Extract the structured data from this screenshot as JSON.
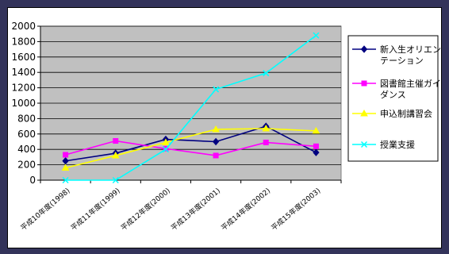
{
  "chart_data": {
    "type": "line",
    "categories": [
      "平成10年度(1998)",
      "平成11年度(1999)",
      "平成12年度(2000)",
      "平成13年度(2001)",
      "平成14年度(2002)",
      "平成15年度(2003)"
    ],
    "ylim": [
      0,
      2000
    ],
    "yticks": [
      0,
      200,
      400,
      600,
      800,
      1000,
      1200,
      1400,
      1600,
      1800,
      2000
    ],
    "grid": true,
    "plot_background": "#c0c0c0",
    "legend_position": "right",
    "series": [
      {
        "name_lines": [
          "新入生オリエン",
          "テーション"
        ],
        "name": "新入生オリエンテーション",
        "color": "#000080",
        "marker": "diamond",
        "values": [
          250,
          350,
          530,
          500,
          700,
          360
        ]
      },
      {
        "name_lines": [
          "図書館主催ガイ",
          "ダンス"
        ],
        "name": "図書館主催ガイダンス",
        "color": "#ff00ff",
        "marker": "square",
        "values": [
          330,
          510,
          410,
          320,
          490,
          440
        ]
      },
      {
        "name_lines": [
          "申込制講習会"
        ],
        "name": "申込制講習会",
        "color": "#ffff00",
        "marker": "triangle",
        "values": [
          160,
          320,
          490,
          660,
          670,
          640
        ]
      },
      {
        "name_lines": [
          "授業支援"
        ],
        "name": "授業支援",
        "color": "#00ffff",
        "marker": "x",
        "values": [
          0,
          0,
          400,
          1180,
          1390,
          1880
        ]
      }
    ]
  }
}
